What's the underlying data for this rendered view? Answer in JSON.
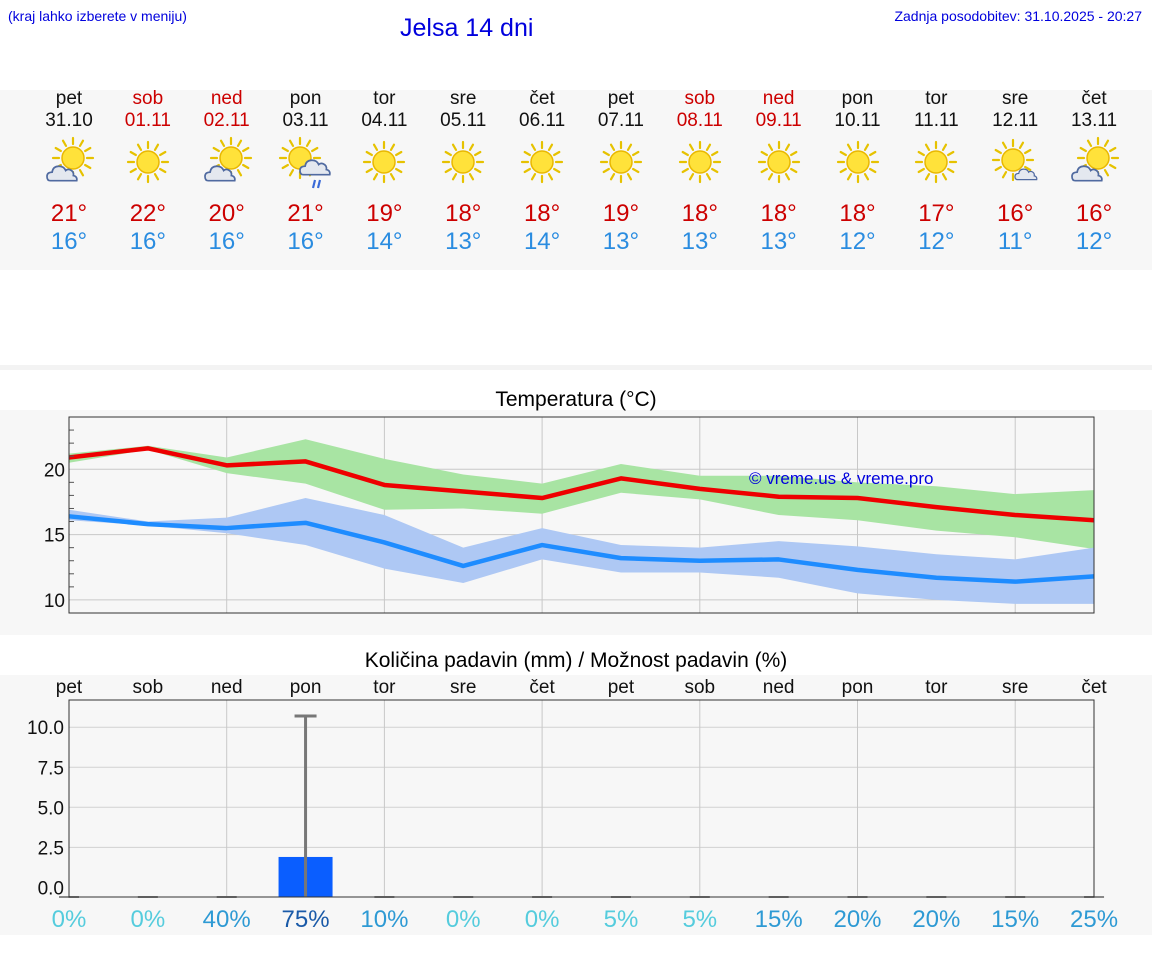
{
  "header": {
    "hint": "(kraj lahko izberete v meniju)",
    "title": "Jelsa 14 dni",
    "updated": "Zadnja posodobitev: 31.10.2025 - 20:27"
  },
  "days": [
    {
      "name": "pet",
      "date": "31.10",
      "weekend": false,
      "icon": "sun-cloud-icon",
      "max": "21°",
      "min": "16°"
    },
    {
      "name": "sob",
      "date": "01.11",
      "weekend": true,
      "icon": "sun-icon",
      "max": "22°",
      "min": "16°"
    },
    {
      "name": "ned",
      "date": "02.11",
      "weekend": true,
      "icon": "sun-cloud-icon",
      "max": "20°",
      "min": "16°"
    },
    {
      "name": "pon",
      "date": "03.11",
      "weekend": false,
      "icon": "sun-rain-icon",
      "max": "21°",
      "min": "16°"
    },
    {
      "name": "tor",
      "date": "04.11",
      "weekend": false,
      "icon": "sun-icon",
      "max": "19°",
      "min": "14°"
    },
    {
      "name": "sre",
      "date": "05.11",
      "weekend": false,
      "icon": "sun-icon",
      "max": "18°",
      "min": "13°"
    },
    {
      "name": "čet",
      "date": "06.11",
      "weekend": false,
      "icon": "sun-icon",
      "max": "18°",
      "min": "14°"
    },
    {
      "name": "pet",
      "date": "07.11",
      "weekend": false,
      "icon": "sun-icon",
      "max": "19°",
      "min": "13°"
    },
    {
      "name": "sob",
      "date": "08.11",
      "weekend": true,
      "icon": "sun-icon",
      "max": "18°",
      "min": "13°"
    },
    {
      "name": "ned",
      "date": "09.11",
      "weekend": true,
      "icon": "sun-icon",
      "max": "18°",
      "min": "13°"
    },
    {
      "name": "pon",
      "date": "10.11",
      "weekend": false,
      "icon": "sun-icon",
      "max": "18°",
      "min": "12°"
    },
    {
      "name": "tor",
      "date": "11.11",
      "weekend": false,
      "icon": "sun-icon",
      "max": "17°",
      "min": "12°"
    },
    {
      "name": "sre",
      "date": "12.11",
      "weekend": false,
      "icon": "sun-small-cloud-icon",
      "max": "16°",
      "min": "11°"
    },
    {
      "name": "čet",
      "date": "13.11",
      "weekend": false,
      "icon": "sun-cloud-icon",
      "max": "16°",
      "min": "12°"
    }
  ],
  "chart_data": [
    {
      "type": "line",
      "title": "Temperatura (°C)",
      "watermark": "© vreme.us & vreme.pro",
      "ylim": [
        9,
        24
      ],
      "yticks": [
        10,
        15,
        20
      ],
      "x": [
        0,
        1,
        2,
        3,
        4,
        5,
        6,
        7,
        8,
        9,
        10,
        11,
        12,
        13
      ],
      "series": [
        {
          "name": "max",
          "color": "#ee0000",
          "values": [
            20.9,
            21.6,
            20.3,
            20.6,
            18.8,
            18.3,
            17.8,
            19.3,
            18.5,
            17.9,
            17.8,
            17.1,
            16.5,
            16.1
          ],
          "band_low": [
            20.5,
            21.5,
            19.7,
            18.9,
            16.9,
            17.0,
            16.6,
            18.2,
            17.7,
            16.5,
            16.1,
            15.3,
            14.8,
            13.9
          ],
          "band_high": [
            21.2,
            21.8,
            20.9,
            22.3,
            20.8,
            19.6,
            18.9,
            20.4,
            19.5,
            19.5,
            19.0,
            18.7,
            18.1,
            18.4
          ],
          "band_color": "#a8e4a3"
        },
        {
          "name": "min",
          "color": "#1e8cff",
          "values": [
            16.4,
            15.8,
            15.5,
            15.9,
            14.4,
            12.6,
            14.2,
            13.2,
            13.0,
            13.1,
            12.3,
            11.7,
            11.4,
            11.8
          ],
          "band_low": [
            16.1,
            15.7,
            15.1,
            14.2,
            12.4,
            11.3,
            13.1,
            12.1,
            12.1,
            11.7,
            10.5,
            10.0,
            9.7,
            9.7
          ],
          "band_high": [
            16.9,
            16.0,
            16.3,
            17.8,
            16.5,
            14.0,
            15.5,
            14.2,
            14.0,
            14.5,
            14.1,
            13.5,
            13.1,
            14.0
          ],
          "band_color": "#aec8f4"
        }
      ]
    },
    {
      "type": "bar",
      "title": "Količina padavin (mm) / Možnost padavin (%)",
      "categories": [
        "pet",
        "sob",
        "ned",
        "pon",
        "tor",
        "sre",
        "čet",
        "pet",
        "sob",
        "ned",
        "pon",
        "tor",
        "sre",
        "čet"
      ],
      "ylim": [
        -0.6,
        11.7
      ],
      "yticks": [
        "10.0",
        "7.5",
        "5.0",
        "2.5",
        "0.0"
      ],
      "values": [
        0,
        0,
        0,
        1.9,
        0,
        0,
        0,
        0,
        0,
        0,
        0,
        0,
        0,
        0
      ],
      "error_high": [
        0,
        0,
        0,
        10.7,
        0,
        0,
        0,
        0,
        0,
        0,
        0,
        0,
        0,
        0
      ],
      "bar_color": "#0a5eff",
      "probability": [
        "0%",
        "0%",
        "40%",
        "75%",
        "10%",
        "0%",
        "0%",
        "5%",
        "5%",
        "15%",
        "20%",
        "20%",
        "15%",
        "25%"
      ]
    }
  ]
}
